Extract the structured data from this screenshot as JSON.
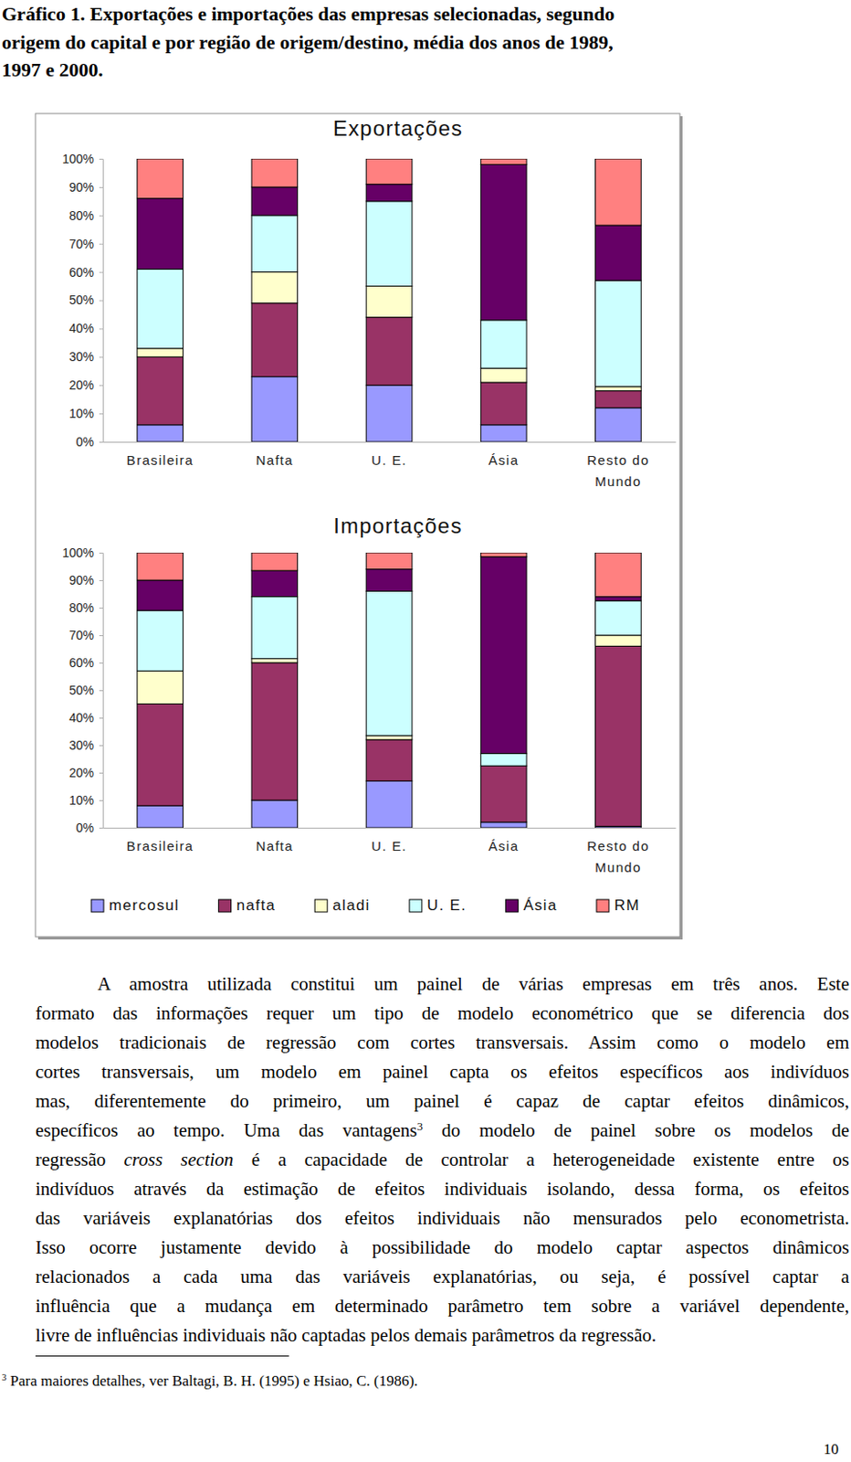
{
  "document": {
    "caption": [
      "Gráfico 1. Exportações e importações das empresas selecionadas, segundo",
      "origem do capital e por região de origem/destino, média dos anos de 1989,",
      "1997 e 2000."
    ],
    "paragraph": [
      [
        {
          "text": "A amostra utilizada constitui um painel de várias empresas em três anos. Este"
        }
      ],
      [
        {
          "text": "formato das informações requer um tipo de modelo econométrico que se diferencia dos"
        }
      ],
      [
        {
          "text": "modelos tradicionais de regressão com cortes transversais. Assim como o modelo em"
        }
      ],
      [
        {
          "text": "cortes transversais, um modelo em painel capta os efeitos específicos aos indivíduos"
        }
      ],
      [
        {
          "text": "mas, diferentemente do primeiro, um painel é capaz de captar efeitos dinâmicos,"
        }
      ],
      [
        {
          "text": "específicos ao tempo. Uma das vantagens"
        },
        {
          "text": "3",
          "format": "sup"
        },
        {
          "text": " do modelo de painel sobre os modelos de"
        }
      ],
      [
        {
          "text": "regressão "
        },
        {
          "text": "cross section",
          "format": "italic"
        },
        {
          "text": " é a capacidade de controlar a heterogeneidade existente entre os"
        }
      ],
      [
        {
          "text": "indivíduos através da estimação de efeitos individuais isolando, dessa forma, os efeitos"
        }
      ],
      [
        {
          "text": "das variáveis explanatórias dos efeitos individuais não mensurados pelo econometrista."
        }
      ],
      [
        {
          "text": "Isso ocorre justamente devido à possibilidade do modelo captar aspectos dinâmicos"
        }
      ],
      [
        {
          "text": "relacionados a cada uma das variáveis explanatórias, ou seja, é possível captar a"
        }
      ],
      [
        {
          "text": "influência que a mudança em determinado parâmetro tem sobre a variável dependente,"
        }
      ],
      [
        {
          "text": "livre de influências individuais não captadas pelos demais parâmetros da regressão."
        }
      ]
    ],
    "footnote": {
      "marker": "3",
      "text": "Para maiores detalhes, ver Baltagi, B. H. (1995) e Hsiao, C. (1986)."
    },
    "page_number": "10"
  },
  "chart_data": [
    {
      "type": "bar",
      "stacked": true,
      "title": "Exportações",
      "categories": [
        "Brasileira",
        "Nafta",
        "U. E.",
        "Ásia",
        "Resto do Mundo"
      ],
      "series": [
        {
          "name": "mercosul",
          "color": "#9999ff",
          "values": [
            6,
            23,
            20,
            6,
            12
          ]
        },
        {
          "name": "nafta",
          "color": "#993366",
          "values": [
            24,
            26,
            24,
            15,
            6
          ]
        },
        {
          "name": "aladi",
          "color": "#ffffcc",
          "values": [
            3,
            11,
            11,
            5,
            1.5
          ]
        },
        {
          "name": "U. E.",
          "color": "#ccffff",
          "values": [
            28,
            20,
            30,
            17,
            37.5
          ]
        },
        {
          "name": "Ásia",
          "color": "#660066",
          "values": [
            25,
            10,
            6,
            55,
            19.5
          ]
        },
        {
          "name": "RM",
          "color": "#ff8080",
          "values": [
            14,
            10,
            9,
            2,
            23.5
          ]
        }
      ],
      "ylim": [
        0,
        100
      ],
      "yticks": [
        {
          "value": 0,
          "label": "0%"
        },
        {
          "value": 10,
          "label": "10%"
        },
        {
          "value": 20,
          "label": "20%"
        },
        {
          "value": 30,
          "label": "30%"
        },
        {
          "value": 40,
          "label": "40%"
        },
        {
          "value": 50,
          "label": "50%"
        },
        {
          "value": 60,
          "label": "60%"
        },
        {
          "value": 70,
          "label": "70%"
        },
        {
          "value": 80,
          "label": "80%"
        },
        {
          "value": 90,
          "label": "90%"
        },
        {
          "value": 100,
          "label": "100%"
        }
      ],
      "grid": false
    },
    {
      "type": "bar",
      "stacked": true,
      "title": "Importações",
      "categories": [
        "Brasileira",
        "Nafta",
        "U. E.",
        "Ásia",
        "Resto do Mundo"
      ],
      "series": [
        {
          "name": "mercosul",
          "color": "#9999ff",
          "values": [
            8,
            10,
            17,
            2,
            0.5
          ]
        },
        {
          "name": "nafta",
          "color": "#993366",
          "values": [
            37,
            50,
            15,
            20.5,
            65.5
          ]
        },
        {
          "name": "aladi",
          "color": "#ffffcc",
          "values": [
            12,
            1.5,
            1.5,
            0,
            4
          ]
        },
        {
          "name": "U. E.",
          "color": "#ccffff",
          "values": [
            22,
            22.5,
            52.5,
            4.5,
            12.5
          ]
        },
        {
          "name": "Ásia",
          "color": "#660066",
          "values": [
            11,
            9.5,
            8,
            71.5,
            1.5
          ]
        },
        {
          "name": "RM",
          "color": "#ff8080",
          "values": [
            10,
            6.5,
            6,
            1.5,
            16
          ]
        }
      ],
      "ylim": [
        0,
        100
      ],
      "yticks": [
        {
          "value": 0,
          "label": "0%"
        },
        {
          "value": 10,
          "label": "10%"
        },
        {
          "value": 20,
          "label": "20%"
        },
        {
          "value": 30,
          "label": "30%"
        },
        {
          "value": 40,
          "label": "40%"
        },
        {
          "value": 50,
          "label": "50%"
        },
        {
          "value": 60,
          "label": "60%"
        },
        {
          "value": 70,
          "label": "70%"
        },
        {
          "value": 80,
          "label": "80%"
        },
        {
          "value": 90,
          "label": "90%"
        },
        {
          "value": 100,
          "label": "100%"
        }
      ],
      "grid": false,
      "legend": "bottom"
    }
  ]
}
